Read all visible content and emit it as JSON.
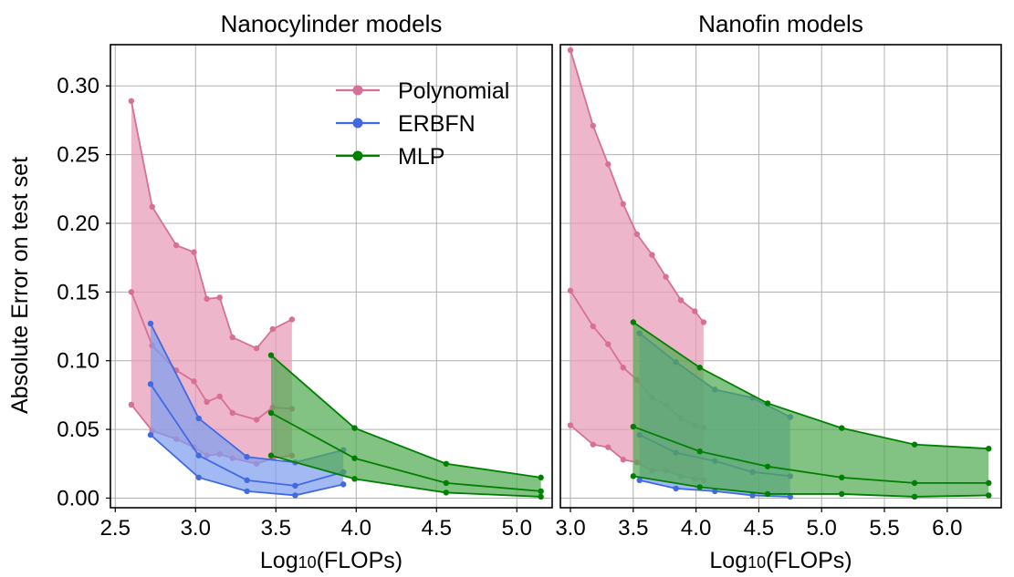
{
  "chart_data": [
    {
      "type": "area",
      "title": "Nanocylinder models",
      "xlabel": "Log10(FLOPs)",
      "ylabel": "Absolute Error on test set",
      "xlim": [
        2.47,
        5.22
      ],
      "ylim": [
        -0.007,
        0.33
      ],
      "xticks": [
        "2.5",
        "3.0",
        "3.5",
        "4.0",
        "4.5",
        "5.0"
      ],
      "yticks": [
        "0.00",
        "0.05",
        "0.10",
        "0.15",
        "0.20",
        "0.25",
        "0.30"
      ],
      "grid": true,
      "legend": {
        "position": "top-right",
        "entries": [
          {
            "label": "Polynomial",
            "color": "#d86f96"
          },
          {
            "label": "ERBFN",
            "color": "#4169e1"
          },
          {
            "label": "MLP",
            "color": "#008000"
          }
        ]
      },
      "series": [
        {
          "name": "Polynomial",
          "color": "#d86f96",
          "fill": "#e89ab5",
          "x": [
            2.6,
            2.73,
            2.88,
            2.99,
            3.07,
            3.15,
            3.23,
            3.38,
            3.48,
            3.6
          ],
          "max": [
            0.289,
            0.212,
            0.184,
            0.179,
            0.145,
            0.146,
            0.117,
            0.109,
            0.123,
            0.13
          ],
          "median": [
            0.15,
            0.111,
            0.093,
            0.085,
            0.07,
            0.074,
            0.062,
            0.057,
            0.066,
            0.065
          ],
          "min": [
            0.068,
            0.049,
            0.043,
            0.037,
            0.031,
            0.032,
            0.029,
            0.025,
            0.029,
            0.031
          ]
        },
        {
          "name": "ERBFN",
          "color": "#4169e1",
          "fill": "#7f9ef0",
          "x": [
            2.72,
            3.02,
            3.32,
            3.62,
            3.92
          ],
          "max": [
            0.127,
            0.058,
            0.03,
            0.026,
            0.035
          ],
          "median": [
            0.083,
            0.031,
            0.013,
            0.009,
            0.019
          ],
          "min": [
            0.046,
            0.015,
            0.005,
            0.002,
            0.01
          ]
        },
        {
          "name": "MLP",
          "color": "#008000",
          "fill": "#52ab52",
          "x": [
            3.47,
            3.99,
            4.56,
            5.15
          ],
          "max": [
            0.104,
            0.051,
            0.025,
            0.015
          ],
          "median": [
            0.062,
            0.029,
            0.011,
            0.005
          ],
          "min": [
            0.031,
            0.014,
            0.004,
            0.001
          ]
        }
      ]
    },
    {
      "type": "area",
      "title": "Nanofin models",
      "xlabel": "Log10(FLOPs)",
      "ylabel": "",
      "xlim": [
        2.92,
        6.43
      ],
      "ylim": [
        -0.007,
        0.33
      ],
      "xticks": [
        "3.0",
        "3.5",
        "4.0",
        "4.5",
        "5.0",
        "5.5",
        "6.0"
      ],
      "yticks": [],
      "grid": true,
      "series": [
        {
          "name": "Polynomial",
          "color": "#d86f96",
          "fill": "#e89ab5",
          "x": [
            3.0,
            3.18,
            3.3,
            3.42,
            3.53,
            3.65,
            3.76,
            3.88,
            3.99,
            4.06
          ],
          "max": [
            0.326,
            0.271,
            0.243,
            0.214,
            0.192,
            0.177,
            0.161,
            0.144,
            0.136,
            0.128
          ],
          "median": [
            0.151,
            0.125,
            0.112,
            0.095,
            0.086,
            0.073,
            0.068,
            0.058,
            0.053,
            0.051
          ],
          "min": [
            0.053,
            0.039,
            0.037,
            0.028,
            0.026,
            0.02,
            0.02,
            0.016,
            0.014,
            0.013
          ]
        },
        {
          "name": "ERBFN",
          "color": "#4169e1",
          "fill": "#7f9ef0",
          "x": [
            3.55,
            3.84,
            4.15,
            4.45,
            4.75
          ],
          "max": [
            0.12,
            0.099,
            0.079,
            0.073,
            0.059
          ],
          "median": [
            0.046,
            0.033,
            0.027,
            0.019,
            0.016
          ],
          "min": [
            0.013,
            0.007,
            0.005,
            0.002,
            0.001
          ]
        },
        {
          "name": "MLP",
          "color": "#008000",
          "fill": "#52ab52",
          "x": [
            3.5,
            4.03,
            4.57,
            5.16,
            5.74,
            6.33
          ],
          "max": [
            0.128,
            0.095,
            0.069,
            0.051,
            0.039,
            0.036
          ],
          "median": [
            0.052,
            0.034,
            0.023,
            0.015,
            0.011,
            0.011
          ],
          "min": [
            0.016,
            0.008,
            0.003,
            0.003,
            0.001,
            0.002
          ]
        }
      ]
    }
  ]
}
